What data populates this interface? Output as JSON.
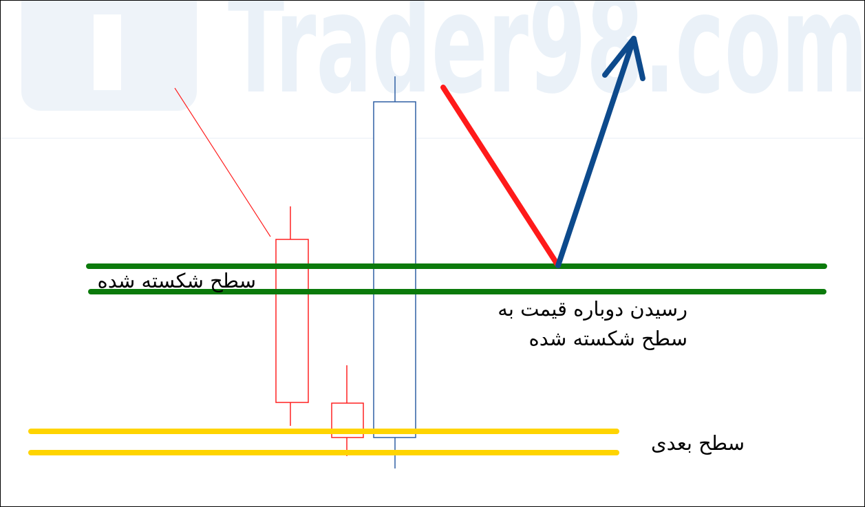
{
  "watermark": "Trader98.com",
  "labels": {
    "broken_level": "سطح شکسته شده",
    "retest_line1": "رسیدن دوباره قیمت به",
    "retest_line2": "سطح شکسته شده",
    "next_level": "سطح بعدی"
  }
}
